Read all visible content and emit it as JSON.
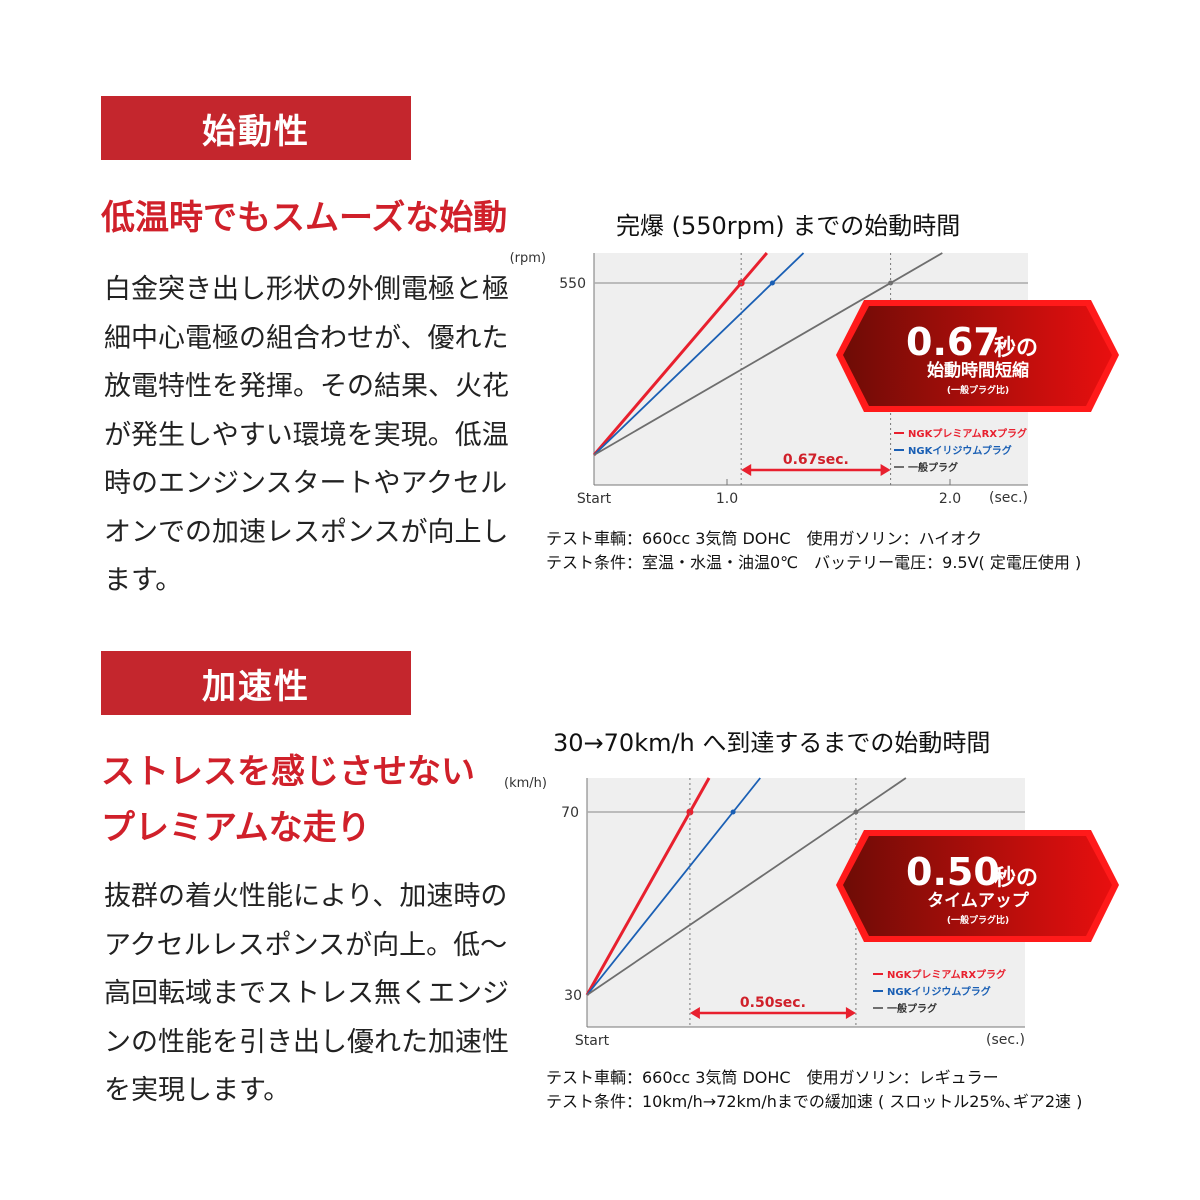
{
  "sections": [
    {
      "label": "始動性",
      "headline": [
        "低温時でもスムーズな始動"
      ],
      "body": "白金突き出し形状の外側電極と極細中心電極の組合わせが、優れた放電特性を発揮。その結果、火花が発生しやすい環境を実現。低温時のエンジンスタートやアクセルオンでの加速レスポンスが向上します。",
      "notes": [
        "テスト車輌：660cc 3気筒 DOHC　使用ガソリン：ハイオク",
        "テスト条件：室温・水温・油温0℃　バッテリー電圧：9.5V( 定電圧使用 )"
      ]
    },
    {
      "label": "加速性",
      "headline": [
        "ストレスを感じさせない",
        "プレミアムな走り"
      ],
      "body": "抜群の着火性能により、加速時のアクセルレスポンスが向上。低〜高回転域までストレス無くエンジンの性能を引き出し優れた加速性を実現します。",
      "notes": [
        "テスト車輌：660cc 3気筒 DOHC　使用ガソリン：レギュラー",
        "テスト条件：10km/h→72km/hまでの緩加速 ( スロットル25%､ギア2速 )"
      ]
    }
  ],
  "colors": {
    "accent": "#c4262d",
    "red": "#e8202e",
    "blue": "#1a5fb4",
    "gray": "#6e6e6e",
    "plot_bg": "#efefef"
  },
  "chart_data": [
    {
      "type": "line",
      "title": "完爆 (550rpm) までの始動時間",
      "ylabel": "(rpm)",
      "xlabel": "(sec.)",
      "x_ticks": [
        "Start",
        "1.0",
        "2.0"
      ],
      "y_ticks": [
        "550"
      ],
      "start_x": 0.4,
      "y_start": 0,
      "y_target": 550,
      "series": [
        {
          "name": "NGKプレミアムRXプラグ",
          "color": "#e8202e",
          "x_at_target": 1.06
        },
        {
          "name": "NGKイリジウムプラグ",
          "color": "#1a5fb4",
          "x_at_target": 1.2
        },
        {
          "name": "一般プラグ",
          "color": "#6e6e6e",
          "x_at_target": 1.73
        }
      ],
      "difference_label": "0.67sec.",
      "badge": {
        "big": "0.67",
        "unit": "秒の",
        "sub": "始動時間短縮",
        "note": "(一般プラグ比)"
      }
    },
    {
      "type": "line",
      "title": "30→70km/h へ到達するまでの始動時間",
      "ylabel": "(km/h)",
      "xlabel": "(sec.)",
      "x_ticks": [
        "Start"
      ],
      "y_ticks": [
        "70",
        "30"
      ],
      "start_x": 0,
      "y_start": 30,
      "y_target": 70,
      "series": [
        {
          "name": "NGKプレミアムRXプラグ",
          "color": "#e8202e",
          "x_at_target": 0.31
        },
        {
          "name": "NGKイリジウムプラグ",
          "color": "#1a5fb4",
          "x_at_target": 0.44
        },
        {
          "name": "一般プラグ",
          "color": "#6e6e6e",
          "x_at_target": 0.81
        }
      ],
      "difference_label": "0.50sec.",
      "badge": {
        "big": "0.50",
        "unit": "秒の",
        "sub": "タイムアップ",
        "note": "(一般プラグ比)"
      }
    }
  ]
}
